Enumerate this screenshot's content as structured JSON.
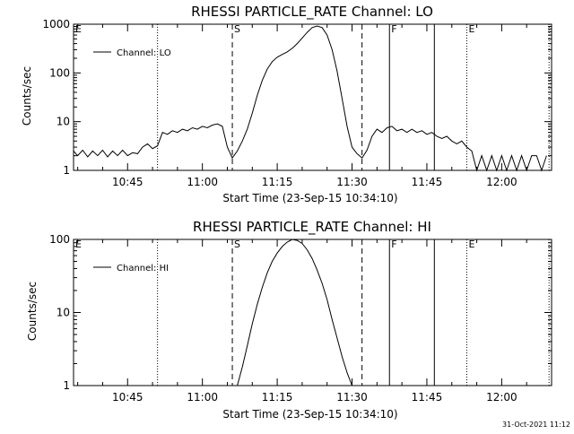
{
  "timestamp": "31-Oct-2021 11:12",
  "chart_data": [
    {
      "type": "line",
      "title": "RHESSI PARTICLE_RATE Channel: LO",
      "xlabel": "Start Time (23-Sep-15 10:34:10)",
      "ylabel": "Counts/sec",
      "y_scale": "log",
      "xlim": [
        "10:34:10",
        "12:10:00"
      ],
      "ylim": [
        1,
        1000
      ],
      "x_ticks": [
        "10:45",
        "11:00",
        "11:15",
        "11:30",
        "11:45",
        "12:00"
      ],
      "y_ticks": [
        "1",
        "10",
        "100",
        "1000"
      ],
      "legend": {
        "position": "top-left",
        "entries": [
          "Channel: LO"
        ]
      },
      "grid": false,
      "markers": [
        {
          "label": "E",
          "time": "10:34:10",
          "style": "dotted"
        },
        {
          "label": "",
          "time": "10:51:00",
          "style": "dotted"
        },
        {
          "label": "S",
          "time": "11:06:00",
          "style": "dashed"
        },
        {
          "label": "",
          "time": "11:32:00",
          "style": "dashed"
        },
        {
          "label": "F",
          "time": "11:37:30",
          "style": "solid"
        },
        {
          "label": "",
          "time": "11:46:30",
          "style": "solid"
        },
        {
          "label": "E",
          "time": "11:53:00",
          "style": "dotted"
        },
        {
          "label": "",
          "time": "12:09:30",
          "style": "dotted"
        }
      ],
      "series": [
        {
          "name": "Channel: LO",
          "points": [
            [
              "10:34:10",
              2.5
            ],
            [
              "10:35",
              2.0
            ],
            [
              "10:36",
              2.6
            ],
            [
              "10:37",
              1.9
            ],
            [
              "10:38",
              2.5
            ],
            [
              "10:39",
              2.0
            ],
            [
              "10:40",
              2.6
            ],
            [
              "10:41",
              1.9
            ],
            [
              "10:42",
              2.5
            ],
            [
              "10:43",
              2.0
            ],
            [
              "10:44",
              2.6
            ],
            [
              "10:45",
              2.0
            ],
            [
              "10:46",
              2.3
            ],
            [
              "10:47",
              2.2
            ],
            [
              "10:48",
              3.0
            ],
            [
              "10:49",
              3.5
            ],
            [
              "10:50",
              2.8
            ],
            [
              "10:51",
              3.2
            ],
            [
              "10:52",
              6.0
            ],
            [
              "10:53",
              5.5
            ],
            [
              "10:54",
              6.5
            ],
            [
              "10:55",
              6.0
            ],
            [
              "10:56",
              7.0
            ],
            [
              "10:57",
              6.5
            ],
            [
              "10:58",
              7.5
            ],
            [
              "10:59",
              7.0
            ],
            [
              "11:00",
              8.0
            ],
            [
              "11:01",
              7.5
            ],
            [
              "11:02",
              8.5
            ],
            [
              "11:03",
              9.0
            ],
            [
              "11:04",
              8.0
            ],
            [
              "11:05",
              3.0
            ],
            [
              "11:06",
              1.8
            ],
            [
              "11:07",
              2.5
            ],
            [
              "11:08",
              4.0
            ],
            [
              "11:09",
              7.0
            ],
            [
              "11:10",
              15.0
            ],
            [
              "11:11",
              35.0
            ],
            [
              "11:12",
              70.0
            ],
            [
              "11:13",
              120.0
            ],
            [
              "11:14",
              170.0
            ],
            [
              "11:15",
              210.0
            ],
            [
              "11:16",
              240.0
            ],
            [
              "11:17",
              270.0
            ],
            [
              "11:18",
              320.0
            ],
            [
              "11:19",
              400.0
            ],
            [
              "11:20",
              520.0
            ],
            [
              "11:21",
              680.0
            ],
            [
              "11:22",
              850.0
            ],
            [
              "11:23",
              920.0
            ],
            [
              "11:24",
              850.0
            ],
            [
              "11:25",
              600.0
            ],
            [
              "11:26",
              300.0
            ],
            [
              "11:27",
              110.0
            ],
            [
              "11:28",
              30.0
            ],
            [
              "11:29",
              8.0
            ],
            [
              "11:30",
              3.0
            ],
            [
              "11:31",
              2.2
            ],
            [
              "11:32",
              1.8
            ],
            [
              "11:33",
              2.6
            ],
            [
              "11:34",
              5.0
            ],
            [
              "11:35",
              7.0
            ],
            [
              "11:36",
              6.0
            ],
            [
              "11:37",
              7.5
            ],
            [
              "11:38",
              8.0
            ],
            [
              "11:39",
              6.5
            ],
            [
              "11:40",
              7.0
            ],
            [
              "11:41",
              6.0
            ],
            [
              "11:42",
              7.0
            ],
            [
              "11:43",
              6.0
            ],
            [
              "11:44",
              6.5
            ],
            [
              "11:45",
              5.5
            ],
            [
              "11:46",
              6.0
            ],
            [
              "11:47",
              5.0
            ],
            [
              "11:48",
              4.5
            ],
            [
              "11:49",
              5.0
            ],
            [
              "11:50",
              4.0
            ],
            [
              "11:51",
              3.5
            ],
            [
              "11:52",
              4.0
            ],
            [
              "11:53",
              3.0
            ],
            [
              "11:54",
              2.5
            ],
            [
              "11:55",
              1.0
            ],
            [
              "11:56",
              2.0
            ],
            [
              "11:57",
              1.0
            ],
            [
              "11:58",
              2.0
            ],
            [
              "11:59",
              1.0
            ],
            [
              "12:00",
              2.0
            ],
            [
              "12:01",
              1.0
            ],
            [
              "12:02",
              2.0
            ],
            [
              "12:03",
              1.0
            ],
            [
              "12:04",
              2.0
            ],
            [
              "12:05",
              1.0
            ],
            [
              "12:06",
              2.0
            ],
            [
              "12:07",
              2.0
            ],
            [
              "12:08",
              1.0
            ],
            [
              "12:09",
              2.0
            ]
          ]
        }
      ]
    },
    {
      "type": "line",
      "title": "RHESSI PARTICLE_RATE Channel: HI",
      "xlabel": "Start Time (23-Sep-15 10:34:10)",
      "ylabel": "Counts/sec",
      "y_scale": "log",
      "xlim": [
        "10:34:10",
        "12:10:00"
      ],
      "ylim": [
        1,
        100
      ],
      "x_ticks": [
        "10:45",
        "11:00",
        "11:15",
        "11:30",
        "11:45",
        "12:00"
      ],
      "y_ticks": [
        "1",
        "10",
        "100"
      ],
      "legend": {
        "position": "top-left",
        "entries": [
          "Channel: HI"
        ]
      },
      "grid": false,
      "markers": [
        {
          "label": "E",
          "time": "10:34:10",
          "style": "dotted"
        },
        {
          "label": "",
          "time": "10:51:00",
          "style": "dotted"
        },
        {
          "label": "S",
          "time": "11:06:00",
          "style": "dashed"
        },
        {
          "label": "",
          "time": "11:32:00",
          "style": "dashed"
        },
        {
          "label": "F",
          "time": "11:37:30",
          "style": "solid"
        },
        {
          "label": "",
          "time": "11:46:30",
          "style": "solid"
        },
        {
          "label": "E",
          "time": "11:53:00",
          "style": "dotted"
        },
        {
          "label": "",
          "time": "12:09:30",
          "style": "dotted"
        }
      ],
      "series": [
        {
          "name": "Channel: HI",
          "points": [
            [
              "11:07:00",
              1.0
            ],
            [
              "11:08",
              1.8
            ],
            [
              "11:09",
              3.5
            ],
            [
              "11:10",
              7.0
            ],
            [
              "11:11",
              13.0
            ],
            [
              "11:12",
              22.0
            ],
            [
              "11:13",
              35.0
            ],
            [
              "11:14",
              50.0
            ],
            [
              "11:15",
              65.0
            ],
            [
              "11:16",
              80.0
            ],
            [
              "11:17",
              92.0
            ],
            [
              "11:18",
              100.0
            ],
            [
              "11:19",
              97.0
            ],
            [
              "11:20",
              88.0
            ],
            [
              "11:21",
              72.0
            ],
            [
              "11:22",
              55.0
            ],
            [
              "11:23",
              38.0
            ],
            [
              "11:24",
              25.0
            ],
            [
              "11:25",
              15.0
            ],
            [
              "11:26",
              8.0
            ],
            [
              "11:27",
              4.5
            ],
            [
              "11:28",
              2.5
            ],
            [
              "11:29",
              1.5
            ],
            [
              "11:30",
              1.0
            ]
          ]
        }
      ]
    }
  ]
}
